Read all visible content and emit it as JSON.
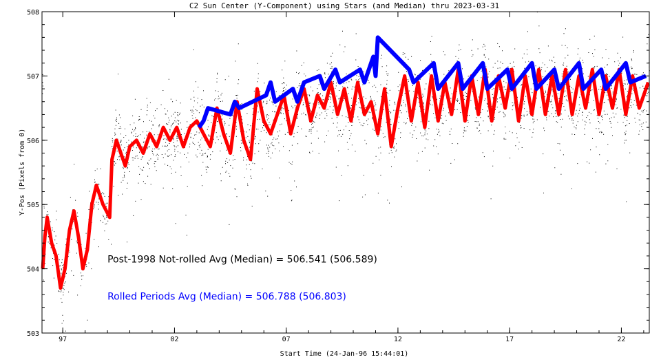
{
  "chart_data": {
    "type": "scatter",
    "title": "C2 Sun Center (Y-Component) using Stars (and Median) thru 2023-03-31",
    "xlabel": "Start Time (24-Jan-96 15:44:01)",
    "ylabel": "Y-Pos (Pixels from 0)",
    "xlim": [
      1996.07,
      2023.25
    ],
    "ylim": [
      503,
      508
    ],
    "xticks": [
      {
        "value": 1997,
        "label": "97"
      },
      {
        "value": 2002,
        "label": "02"
      },
      {
        "value": 2007,
        "label": "07"
      },
      {
        "value": 2012,
        "label": "12"
      },
      {
        "value": 2017,
        "label": "17"
      },
      {
        "value": 2022,
        "label": "22"
      }
    ],
    "yticks": [
      {
        "value": 503,
        "label": "503"
      },
      {
        "value": 504,
        "label": "504"
      },
      {
        "value": 505,
        "label": "505"
      },
      {
        "value": 506,
        "label": "506"
      },
      {
        "value": 507,
        "label": "507"
      },
      {
        "value": 508,
        "label": "508"
      }
    ],
    "annotations": [
      {
        "text": "Post-1998 Not-rolled Avg (Median) = 506.541 (506.589)",
        "color": "#000000",
        "x": 1999.0,
        "y": 504.1
      },
      {
        "text": "Rolled Periods Avg (Median) = 506.788 (506.803)",
        "color": "#0000ff",
        "x": 1999.0,
        "y": 503.52
      }
    ],
    "series": [
      {
        "color": "#ff0000",
        "role": "not-rolled median",
        "points": [
          [
            1996.1,
            504.0
          ],
          [
            1996.2,
            504.5
          ],
          [
            1996.3,
            504.8
          ],
          [
            1996.5,
            504.4
          ],
          [
            1996.7,
            504.2
          ],
          [
            1996.9,
            503.7
          ],
          [
            1997.1,
            504.0
          ],
          [
            1997.3,
            504.6
          ],
          [
            1997.5,
            504.9
          ],
          [
            1997.7,
            504.5
          ],
          [
            1997.9,
            504.0
          ],
          [
            1998.1,
            504.3
          ],
          [
            1998.3,
            505.0
          ],
          [
            1998.5,
            505.3
          ],
          [
            1998.8,
            505.0
          ],
          [
            1999.1,
            504.8
          ],
          [
            1999.2,
            505.7
          ],
          [
            1999.4,
            506.0
          ],
          [
            1999.6,
            505.8
          ],
          [
            1999.8,
            505.6
          ],
          [
            2000.0,
            505.9
          ],
          [
            2000.3,
            506.0
          ],
          [
            2000.6,
            505.8
          ],
          [
            2000.9,
            506.1
          ],
          [
            2001.2,
            505.9
          ],
          [
            2001.5,
            506.2
          ],
          [
            2001.8,
            506.0
          ],
          [
            2002.1,
            506.2
          ],
          [
            2002.4,
            505.9
          ],
          [
            2002.7,
            506.2
          ],
          [
            2003.0,
            506.3
          ],
          [
            2003.3,
            506.1
          ],
          [
            2003.6,
            505.9
          ],
          [
            2003.9,
            506.5
          ],
          [
            2004.2,
            506.1
          ],
          [
            2004.5,
            505.8
          ],
          [
            2004.8,
            506.6
          ],
          [
            2005.1,
            506.0
          ],
          [
            2005.4,
            505.7
          ],
          [
            2005.7,
            506.8
          ],
          [
            2006.0,
            506.3
          ],
          [
            2006.3,
            506.1
          ],
          [
            2006.6,
            506.4
          ],
          [
            2006.9,
            506.7
          ],
          [
            2007.2,
            506.1
          ],
          [
            2007.5,
            506.5
          ],
          [
            2007.8,
            506.8
          ],
          [
            2008.1,
            506.3
          ],
          [
            2008.4,
            506.7
          ],
          [
            2008.7,
            506.5
          ],
          [
            2009.0,
            506.9
          ],
          [
            2009.3,
            506.4
          ],
          [
            2009.6,
            506.8
          ],
          [
            2009.9,
            506.3
          ],
          [
            2010.2,
            506.9
          ],
          [
            2010.5,
            506.4
          ],
          [
            2010.8,
            506.6
          ],
          [
            2011.1,
            506.1
          ],
          [
            2011.4,
            506.8
          ],
          [
            2011.7,
            505.9
          ],
          [
            2012.0,
            506.5
          ],
          [
            2012.3,
            507.0
          ],
          [
            2012.6,
            506.3
          ],
          [
            2012.9,
            506.9
          ],
          [
            2013.2,
            506.2
          ],
          [
            2013.5,
            507.0
          ],
          [
            2013.8,
            506.3
          ],
          [
            2014.1,
            506.9
          ],
          [
            2014.4,
            506.4
          ],
          [
            2014.7,
            507.1
          ],
          [
            2015.0,
            506.3
          ],
          [
            2015.3,
            507.0
          ],
          [
            2015.6,
            506.4
          ],
          [
            2015.9,
            507.1
          ],
          [
            2016.2,
            506.3
          ],
          [
            2016.5,
            507.0
          ],
          [
            2016.8,
            506.5
          ],
          [
            2017.1,
            507.1
          ],
          [
            2017.4,
            506.3
          ],
          [
            2017.7,
            507.0
          ],
          [
            2018.0,
            506.4
          ],
          [
            2018.3,
            507.1
          ],
          [
            2018.6,
            506.4
          ],
          [
            2018.9,
            507.0
          ],
          [
            2019.2,
            506.4
          ],
          [
            2019.5,
            507.1
          ],
          [
            2019.8,
            506.4
          ],
          [
            2020.1,
            507.0
          ],
          [
            2020.4,
            506.5
          ],
          [
            2020.7,
            507.1
          ],
          [
            2021.0,
            506.4
          ],
          [
            2021.3,
            507.0
          ],
          [
            2021.6,
            506.5
          ],
          [
            2021.9,
            507.1
          ],
          [
            2022.2,
            506.4
          ],
          [
            2022.5,
            507.0
          ],
          [
            2022.8,
            506.5
          ],
          [
            2023.2,
            506.9
          ]
        ]
      },
      {
        "color": "#0000ff",
        "role": "rolled median",
        "points": [
          [
            2003.1,
            506.2
          ],
          [
            2003.3,
            506.3
          ],
          [
            2003.5,
            506.5
          ],
          [
            2004.5,
            506.4
          ],
          [
            2004.7,
            506.6
          ],
          [
            2004.9,
            506.5
          ],
          [
            2006.1,
            506.7
          ],
          [
            2006.3,
            506.9
          ],
          [
            2006.5,
            506.6
          ],
          [
            2007.3,
            506.8
          ],
          [
            2007.5,
            506.6
          ],
          [
            2007.8,
            506.9
          ],
          [
            2008.5,
            507.0
          ],
          [
            2008.7,
            506.8
          ],
          [
            2009.2,
            507.1
          ],
          [
            2009.4,
            506.9
          ],
          [
            2010.3,
            507.1
          ],
          [
            2010.5,
            506.9
          ],
          [
            2010.9,
            507.3
          ],
          [
            2011.0,
            507.0
          ],
          [
            2011.1,
            507.6
          ],
          [
            2012.5,
            507.1
          ],
          [
            2012.7,
            506.9
          ],
          [
            2013.6,
            507.2
          ],
          [
            2013.8,
            506.8
          ],
          [
            2014.7,
            507.2
          ],
          [
            2014.9,
            506.8
          ],
          [
            2015.8,
            507.2
          ],
          [
            2016.0,
            506.8
          ],
          [
            2016.9,
            507.1
          ],
          [
            2017.1,
            506.8
          ],
          [
            2018.0,
            507.2
          ],
          [
            2018.2,
            506.8
          ],
          [
            2019.0,
            507.1
          ],
          [
            2019.2,
            506.8
          ],
          [
            2020.1,
            507.2
          ],
          [
            2020.3,
            506.8
          ],
          [
            2021.1,
            507.1
          ],
          [
            2021.3,
            506.8
          ],
          [
            2022.2,
            507.2
          ],
          [
            2022.4,
            506.9
          ],
          [
            2023.1,
            507.0
          ]
        ]
      }
    ]
  }
}
